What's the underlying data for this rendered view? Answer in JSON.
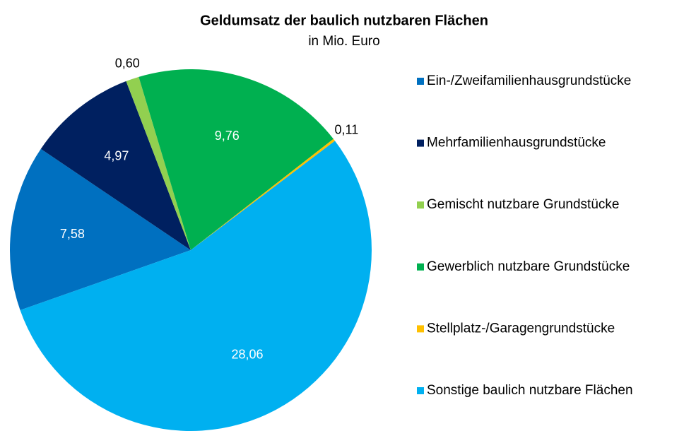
{
  "chart_data": {
    "type": "pie",
    "title": "Geldumsatz der baulich nutzbaren Flächen",
    "subtitle": "in Mio. Euro",
    "categories": [
      "Ein-/Zweifamilienhausgrundstücke",
      "Mehrfamilienhausgrundstücke",
      "Gemischt nutzbare Grundstücke",
      "Gewerblich nutzbare Grundstücke",
      "Stellplatz-/Garagengrundstücke",
      "Sonstige baulich nutzbare Flächen"
    ],
    "values": [
      7.58,
      4.97,
      0.6,
      9.76,
      0.11,
      28.06
    ],
    "value_labels": [
      "7,58",
      "4,97",
      "0,60",
      "9,76",
      "0,11",
      "28,06"
    ],
    "colors": [
      "#0070c0",
      "#002060",
      "#92d050",
      "#00b050",
      "#ffc000",
      "#00b0f0"
    ],
    "legend": "right"
  }
}
